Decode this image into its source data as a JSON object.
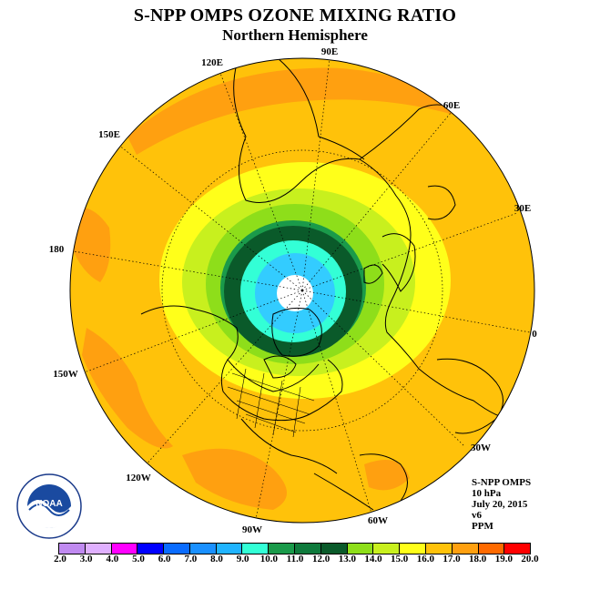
{
  "header": {
    "title": "S-NPP OMPS OZONE MIXING RATIO",
    "subtitle": "Northern Hemisphere"
  },
  "map": {
    "projection": "north-polar-stereographic",
    "longitude_labels": [
      "90E",
      "60E",
      "30E",
      "0",
      "30W",
      "60W",
      "90W",
      "120W",
      "150W",
      "180",
      "150E",
      "120E"
    ],
    "colors": {
      "c9": "#33ffd6",
      "c10": "#1a9a4a",
      "c11": "#0e7a3c",
      "c12": "#0a5a2a",
      "c13": "#8ede1a",
      "c14": "#c8f01e",
      "c15": "#ffff1a",
      "c16": "#ffc20a",
      "c17": "#ffa010",
      "inner": "#33ccff",
      "pole": "#ffffff"
    }
  },
  "info": {
    "instrument": "S-NPP OMPS",
    "level": "10 hPa",
    "date": "July 20, 2015",
    "version": "v6",
    "units": "PPM"
  },
  "logo": {
    "text": "NOAA",
    "ring_text": "NATIONAL OCEANIC AND ATMOSPHERIC ADMINISTRATION · U.S. DEPARTMENT OF COMMERCE"
  },
  "colorbar": {
    "labels": [
      "2.0",
      "3.0",
      "4.0",
      "5.0",
      "6.0",
      "7.0",
      "8.0",
      "9.0",
      "10.0",
      "11.0",
      "12.0",
      "13.0",
      "14.0",
      "15.0",
      "16.0",
      "17.0",
      "18.0",
      "19.0",
      "20.0"
    ],
    "colors": [
      "#c08af0",
      "#e0b0ff",
      "#ff00ff",
      "#0000ff",
      "#0a6cff",
      "#1a90ff",
      "#20b4ff",
      "#33ffd6",
      "#1a9a4a",
      "#0e7a3c",
      "#0a5a2a",
      "#8ede1a",
      "#c8f01e",
      "#ffff1a",
      "#ffc20a",
      "#ffa010",
      "#ff6a00",
      "#ff0000",
      "#8b5a3a"
    ]
  }
}
